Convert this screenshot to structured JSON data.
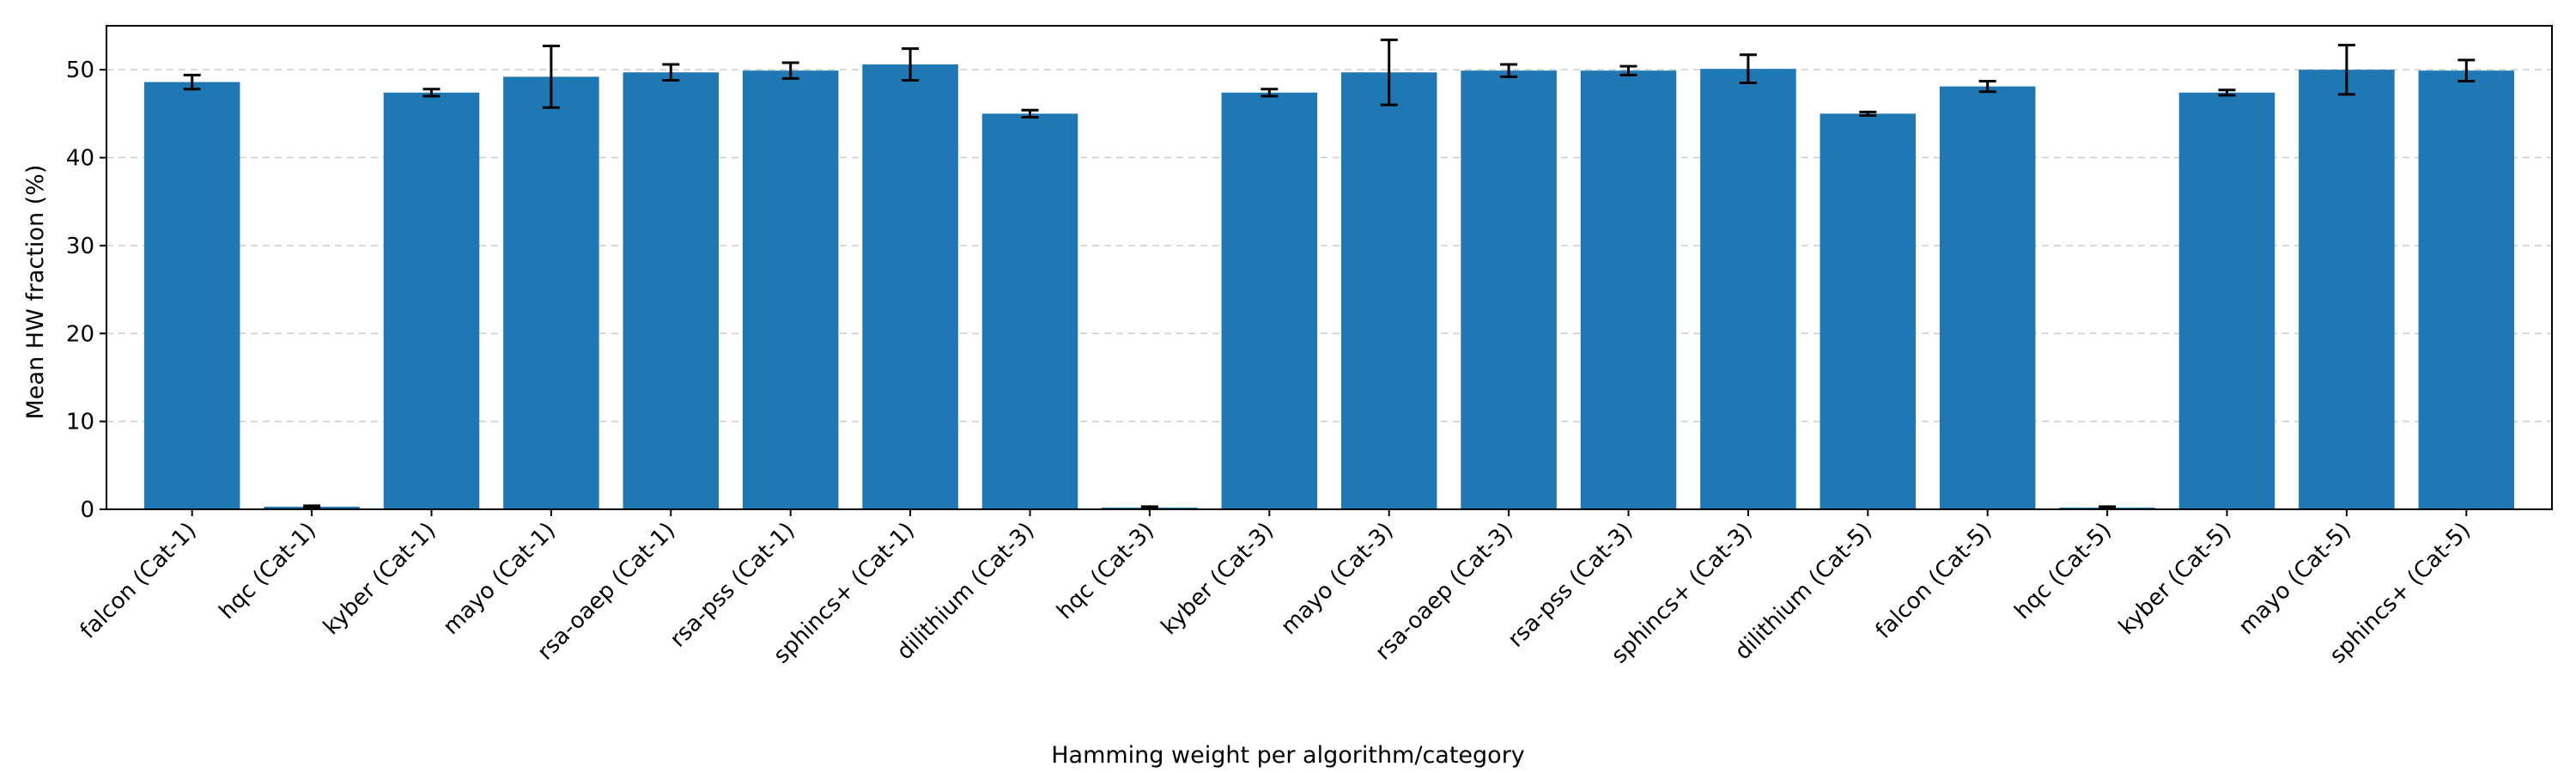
{
  "chart_data": {
    "type": "bar",
    "title": "",
    "xlabel": "Hamming weight per algorithm/category",
    "ylabel": "Mean HW fraction (%)",
    "ylim": [
      0,
      55
    ],
    "yticks": [
      0,
      10,
      20,
      30,
      40,
      50
    ],
    "grid": "horizontal dashed",
    "legend": "none",
    "bar_color": "#1f77b4",
    "categories": [
      "falcon (Cat-1)",
      "hqc (Cat-1)",
      "kyber (Cat-1)",
      "mayo (Cat-1)",
      "rsa-oaep (Cat-1)",
      "rsa-pss (Cat-1)",
      "sphincs+ (Cat-1)",
      "dilithium (Cat-3)",
      "hqc (Cat-3)",
      "kyber (Cat-3)",
      "mayo (Cat-3)",
      "rsa-oaep (Cat-3)",
      "rsa-pss (Cat-3)",
      "sphincs+ (Cat-3)",
      "dilithium (Cat-5)",
      "falcon (Cat-5)",
      "hqc (Cat-5)",
      "kyber (Cat-5)",
      "mayo (Cat-5)",
      "sphincs+ (Cat-5)"
    ],
    "values": [
      48.6,
      0.3,
      47.4,
      49.2,
      49.7,
      49.9,
      50.6,
      45.0,
      0.2,
      47.4,
      49.7,
      49.9,
      49.9,
      50.1,
      45.0,
      48.1,
      0.2,
      47.4,
      50.0,
      49.9
    ],
    "errors": [
      0.8,
      0.1,
      0.4,
      3.5,
      0.9,
      0.9,
      1.8,
      0.4,
      0.1,
      0.4,
      3.7,
      0.7,
      0.5,
      1.6,
      0.2,
      0.6,
      0.1,
      0.3,
      2.8,
      1.2
    ]
  }
}
